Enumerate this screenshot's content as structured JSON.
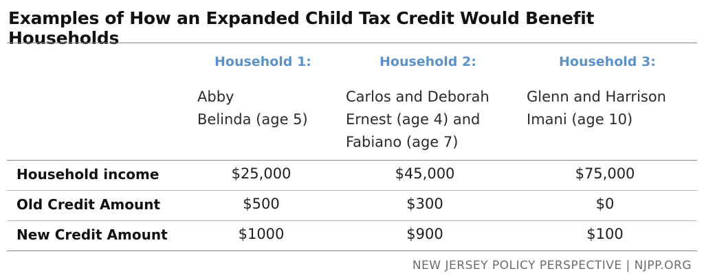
{
  "title": "Examples of How an Expanded Child Tax Credit Would Benefit Households",
  "households": [
    {
      "header": "Household 1:",
      "members": [
        "Abby",
        "Belinda (age 5)"
      ]
    },
    {
      "header": "Household 2:",
      "members": [
        "Carlos and Deborah",
        "Ernest (age 4) and",
        "Fabiano (age 7)"
      ]
    },
    {
      "header": "Household 3:",
      "members": [
        "Glenn and Harrison",
        "Imani (age 10)"
      ]
    }
  ],
  "rows": [
    {
      "label": "Household income",
      "values": [
        "$25,000",
        "$45,000",
        "$75,000"
      ]
    },
    {
      "label": "Old Credit Amount",
      "values": [
        "$500",
        "$300",
        "$0"
      ]
    },
    {
      "label": "New Credit Amount",
      "values": [
        "$1000",
        "$900",
        "$100"
      ]
    }
  ],
  "source": "NEW JERSEY POLICY PERSPECTIVE | NJPP.ORG"
}
